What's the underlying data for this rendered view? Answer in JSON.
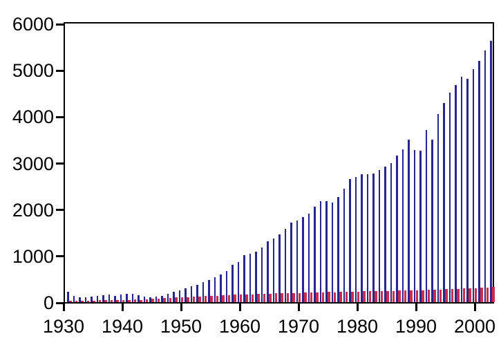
{
  "chart_data": {
    "type": "bar",
    "title": "",
    "xlabel": "",
    "ylabel": "",
    "ylim": [
      0,
      6000
    ],
    "yticks": [
      0,
      1000,
      2000,
      3000,
      4000,
      5000,
      6000
    ],
    "xticks": [
      1930,
      1940,
      1950,
      1960,
      1970,
      1980,
      1990,
      2000
    ],
    "grid": false,
    "legend": "none",
    "x_range": [
      1930,
      2002
    ],
    "x": [
      1930,
      1931,
      1932,
      1933,
      1934,
      1935,
      1936,
      1937,
      1938,
      1939,
      1940,
      1941,
      1942,
      1943,
      1944,
      1945,
      1946,
      1947,
      1948,
      1949,
      1950,
      1951,
      1952,
      1953,
      1954,
      1955,
      1956,
      1957,
      1958,
      1959,
      1960,
      1961,
      1962,
      1963,
      1964,
      1965,
      1966,
      1967,
      1968,
      1969,
      1970,
      1971,
      1972,
      1973,
      1974,
      1975,
      1976,
      1977,
      1978,
      1979,
      1980,
      1981,
      1982,
      1983,
      1984,
      1985,
      1986,
      1987,
      1988,
      1989,
      1990,
      1991,
      1992,
      1993,
      1994,
      1995,
      1996,
      1997,
      1998,
      1999,
      2000,
      2001,
      2002
    ],
    "series": [
      {
        "name": "series-1-navy",
        "color": "#26268e",
        "values": [
          230,
          135,
          110,
          100,
          120,
          135,
          150,
          160,
          135,
          165,
          175,
          185,
          150,
          120,
          105,
          120,
          135,
          180,
          220,
          255,
          305,
          345,
          380,
          430,
          480,
          535,
          600,
          675,
          800,
          870,
          1020,
          1045,
          1085,
          1170,
          1315,
          1375,
          1465,
          1585,
          1720,
          1760,
          1835,
          1905,
          2060,
          2170,
          2170,
          2140,
          2260,
          2440,
          2645,
          2700,
          2750,
          2750,
          2770,
          2840,
          2915,
          2990,
          3150,
          3290,
          3500,
          3270,
          3255,
          3705,
          3505,
          4050,
          4285,
          4510,
          4670,
          4860,
          4815,
          5025,
          5190,
          5425,
          5630
        ]
      },
      {
        "name": "series-2-crimson",
        "color": "#cc2d4d",
        "values": [
          30,
          25,
          25,
          30,
          35,
          40,
          45,
          45,
          40,
          45,
          50,
          55,
          50,
          55,
          70,
          80,
          90,
          95,
          100,
          105,
          110,
          120,
          125,
          130,
          135,
          140,
          150,
          155,
          160,
          165,
          170,
          170,
          175,
          180,
          185,
          190,
          190,
          195,
          200,
          200,
          205,
          205,
          210,
          215,
          220,
          215,
          220,
          225,
          230,
          230,
          235,
          235,
          240,
          240,
          245,
          245,
          250,
          250,
          255,
          255,
          260,
          265,
          270,
          275,
          280,
          285,
          290,
          295,
          300,
          305,
          310,
          315,
          330
        ]
      }
    ]
  },
  "colors": {
    "background": "#ffffff",
    "axis": "#000000",
    "bar_navy": "#26268e",
    "bar_crimson": "#cc2d4d"
  }
}
